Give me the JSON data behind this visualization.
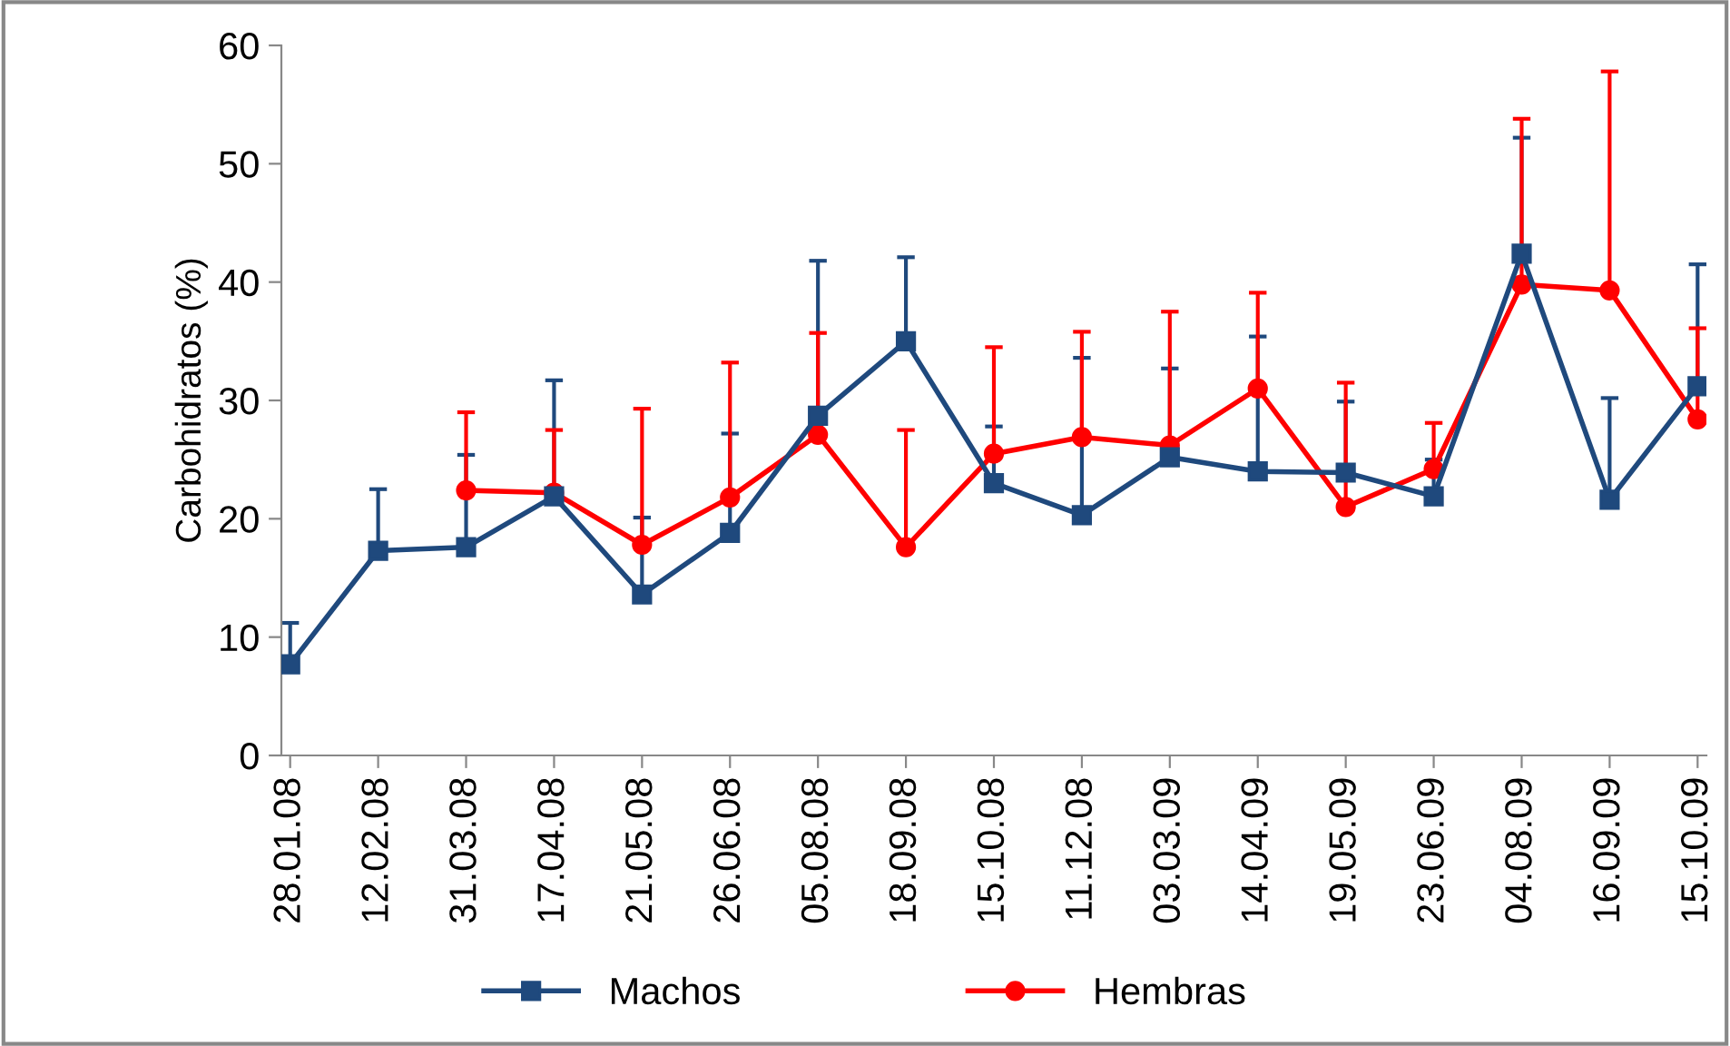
{
  "chart_data": {
    "type": "line",
    "ylabel": "Carbohidratos (%)",
    "categories": [
      "28.01.08",
      "12.02.08",
      "31.03.08",
      "17.04.08",
      "21.05.08",
      "26.06.08",
      "05.08.08",
      "18.09.08",
      "15.10.08",
      "11.12.08",
      "03.03.09",
      "14.04.09",
      "19.05.09",
      "23.06.09",
      "04.08.09",
      "16.09.09",
      "15.10.09"
    ],
    "series": [
      {
        "name": "Machos",
        "color": "#1f497d",
        "marker": "square",
        "values": [
          7.7,
          17.3,
          17.6,
          21.9,
          13.6,
          18.8,
          28.7,
          35.0,
          23.0,
          20.3,
          25.2,
          24.0,
          23.9,
          21.9,
          42.4,
          21.6,
          31.2
        ],
        "errors": [
          [
            7.7,
            11.2
          ],
          [
            17.3,
            22.5
          ],
          [
            17.6,
            25.4
          ],
          [
            21.9,
            31.7
          ],
          [
            13.6,
            20.1
          ],
          [
            18.8,
            27.2
          ],
          [
            28.7,
            41.8
          ],
          [
            35.0,
            42.1
          ],
          [
            23.0,
            27.8
          ],
          [
            20.3,
            33.6
          ],
          [
            25.2,
            32.7
          ],
          [
            24.0,
            35.4
          ],
          [
            23.9,
            29.9
          ],
          [
            21.9,
            25.0
          ],
          [
            42.4,
            52.2
          ],
          [
            21.6,
            30.2
          ],
          [
            31.2,
            41.5
          ]
        ]
      },
      {
        "name": "Hembras",
        "color": "#ff0000",
        "marker": "circle",
        "values": [
          null,
          null,
          22.4,
          22.2,
          17.8,
          21.8,
          27.1,
          17.6,
          25.5,
          26.9,
          26.2,
          31.0,
          21.0,
          24.2,
          39.8,
          39.3,
          28.4
        ],
        "errors": [
          null,
          null,
          [
            22.4,
            29.0
          ],
          [
            22.2,
            27.5
          ],
          [
            17.8,
            29.3
          ],
          [
            21.8,
            33.2
          ],
          [
            27.1,
            35.7
          ],
          [
            17.6,
            27.5
          ],
          [
            25.5,
            34.5
          ],
          [
            26.9,
            35.8
          ],
          [
            26.2,
            37.5
          ],
          [
            31.0,
            39.1
          ],
          [
            21.0,
            31.5
          ],
          [
            24.2,
            28.1
          ],
          [
            39.8,
            53.8
          ],
          [
            39.3,
            57.8
          ],
          [
            28.4,
            36.1
          ]
        ]
      }
    ],
    "ylim": [
      0,
      60
    ],
    "yticks": [
      0,
      10,
      20,
      30,
      40,
      50,
      60
    ],
    "grid": false,
    "legend": "bottom"
  }
}
